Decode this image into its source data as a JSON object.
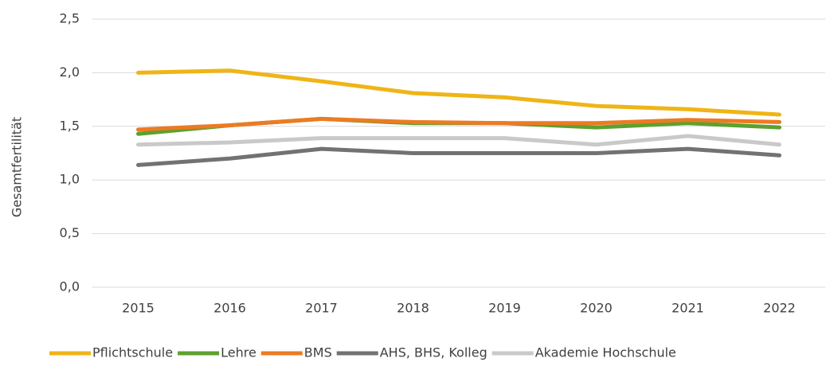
{
  "chart_data": {
    "type": "line",
    "y_label": "Gesamtfertilität",
    "categories": [
      "2015",
      "2016",
      "2017",
      "2018",
      "2019",
      "2020",
      "2021",
      "2022"
    ],
    "ylim": [
      0,
      2.5
    ],
    "yticks": [
      {
        "value": 0,
        "label": "0,0"
      },
      {
        "value": 0.5,
        "label": "0,5"
      },
      {
        "value": 1,
        "label": "1,0"
      },
      {
        "value": 1.5,
        "label": "1,5"
      },
      {
        "value": 2,
        "label": "2,0"
      },
      {
        "value": 2.5,
        "label": "2,5"
      }
    ],
    "grid": true,
    "legend": "bottom",
    "series": [
      {
        "name": "Pflichtschule",
        "color": "#efb416",
        "values": [
          2.0,
          2.02,
          1.92,
          1.81,
          1.77,
          1.69,
          1.66,
          1.61
        ]
      },
      {
        "name": "Lehre",
        "color": "#5ca12f",
        "values": [
          1.43,
          1.51,
          1.57,
          1.53,
          1.53,
          1.49,
          1.53,
          1.49
        ]
      },
      {
        "name": "BMS",
        "color": "#ec7b23",
        "values": [
          1.47,
          1.51,
          1.57,
          1.54,
          1.53,
          1.53,
          1.56,
          1.54
        ]
      },
      {
        "name": "AHS, BHS, Kolleg",
        "color": "#727272",
        "values": [
          1.14,
          1.2,
          1.29,
          1.25,
          1.25,
          1.25,
          1.29,
          1.23
        ]
      },
      {
        "name": "Akademie Hochschule",
        "color": "#c9c9c9",
        "values": [
          1.33,
          1.35,
          1.39,
          1.39,
          1.39,
          1.33,
          1.41,
          1.33
        ]
      }
    ]
  }
}
